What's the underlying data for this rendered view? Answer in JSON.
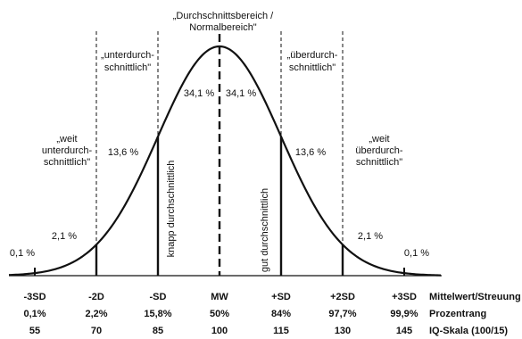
{
  "zones": {
    "center": {
      "line1": "„Durchschnittsbereich /",
      "line2": "Normalbereich\""
    },
    "left_below": {
      "line1": "„unterdurch-",
      "line2": "schnittlich\""
    },
    "right_above": {
      "line1": "„überdurch-",
      "line2": "schnittlich\""
    },
    "far_left": {
      "line1": "„weit",
      "line2": "unterdurch-",
      "line3": "schnittlich\""
    },
    "far_right": {
      "line1": "„weit",
      "line2": "überdurch-",
      "line3": "schnittlich\""
    }
  },
  "vertical_labels": {
    "left": "knapp durchschnittlich",
    "right": "gut durchschnittlich"
  },
  "chart_data": {
    "type": "area",
    "distribution": "normal",
    "percentages": [
      {
        "zone": "< -3SD",
        "value": "0,1 %"
      },
      {
        "zone": "-3SD to -2SD",
        "value": "2,1 %"
      },
      {
        "zone": "-2SD to -SD",
        "value": "13,6 %"
      },
      {
        "zone": "-SD to MW",
        "value": "34,1 %"
      },
      {
        "zone": "MW to +SD",
        "value": "34,1 %"
      },
      {
        "zone": "+SD to +2SD",
        "value": "13,6 %"
      },
      {
        "zone": "+2SD to +3SD",
        "value": "2,1 %"
      },
      {
        "zone": "> +3SD",
        "value": "0,1 %"
      }
    ],
    "positions": [
      "-3SD",
      "-2D",
      "-SD",
      "MW",
      "+SD",
      "+2SD",
      "+3SD"
    ],
    "prozentrang": [
      "0,1%",
      "2,2%",
      "15,8%",
      "50%",
      "84%",
      "97,7%",
      "99,9%"
    ],
    "iq": [
      "55",
      "70",
      "85",
      "100",
      "115",
      "130",
      "145"
    ],
    "row_labels": {
      "positions": "Mittelwert/Streuung",
      "prozentrang": "Prozentrang",
      "iq": "IQ-Skala (100/15)"
    }
  }
}
